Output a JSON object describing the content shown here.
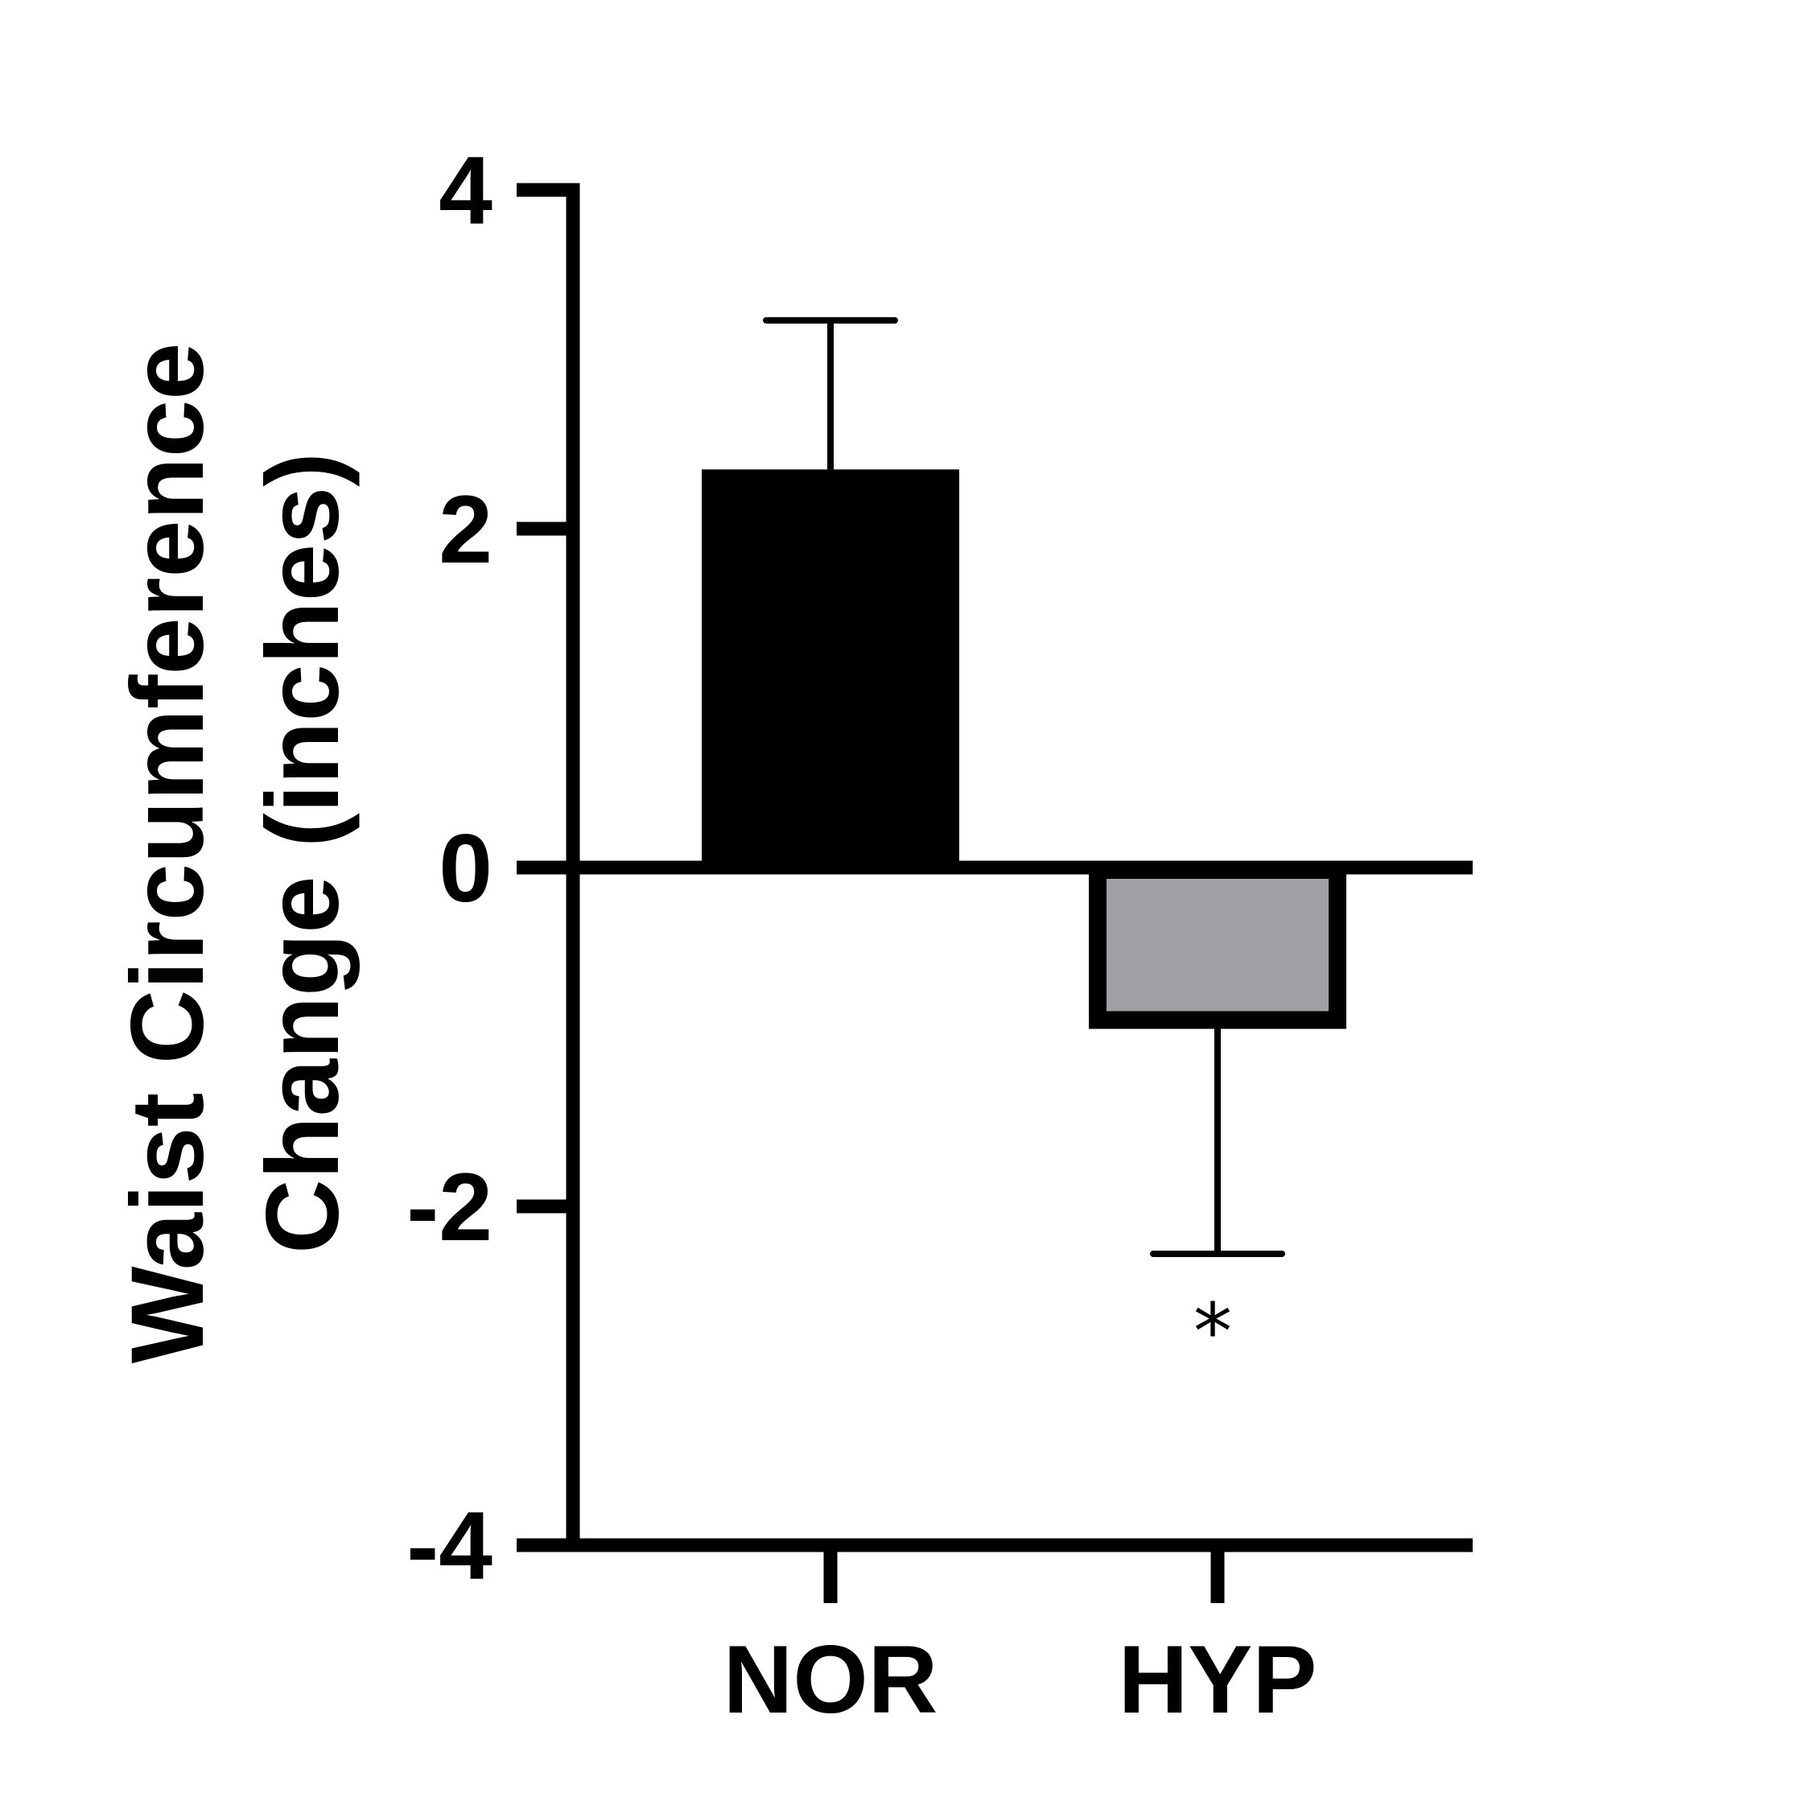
{
  "chart_data": {
    "type": "bar",
    "title": "",
    "ylabel_lines": [
      "Waist Circumference",
      "Change (inches)"
    ],
    "xlabel": "",
    "categories": [
      "NOR",
      "HYP"
    ],
    "values": [
      2.35,
      -0.9
    ],
    "errors_up": [
      0.88,
      0
    ],
    "errors_down": [
      0,
      1.38
    ],
    "bar_fill": [
      "#000000",
      "#a0a0a4"
    ],
    "bar_stroke": [
      "#000000",
      "#000000"
    ],
    "ylim": [
      -4,
      4
    ],
    "yticks": [
      4,
      2,
      0,
      -2,
      -4
    ],
    "ytick_labels": [
      "4",
      "2",
      "0",
      "-2",
      "-4"
    ],
    "grid": false,
    "annotations": [
      {
        "category": "HYP",
        "text": "*"
      }
    ]
  }
}
